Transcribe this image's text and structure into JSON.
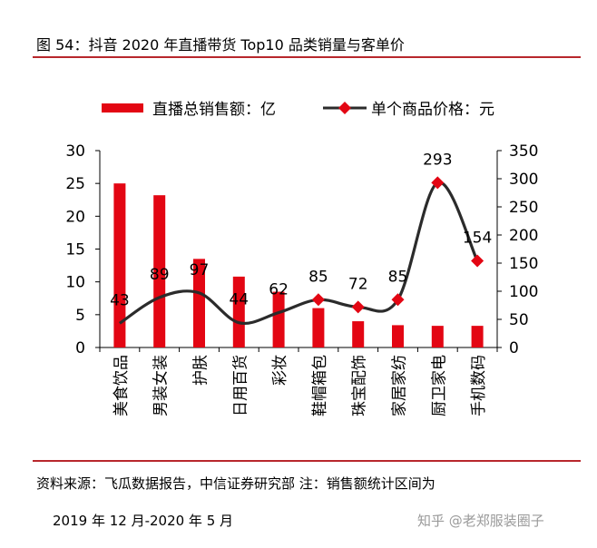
{
  "header": {
    "title": "图 54：抖音 2020 年直播带货 Top10 品类销量与客单价"
  },
  "footer": {
    "source_line1": "资料来源：飞瓜数据报告，中信证券研究部  注：销售额统计区间为",
    "source_line2": "2019 年 12 月-2020 年 5 月",
    "watermark": "知乎 @老郑服装圈子"
  },
  "colors": {
    "bar": "#e30613",
    "line": "#2b2b2b",
    "marker": "#e30613",
    "rule": "#b8272c"
  },
  "chart_data": {
    "type": "bar",
    "categories": [
      "美食饮品",
      "男装女装",
      "护肤",
      "日用百货",
      "彩妆",
      "鞋帽箱包",
      "珠宝配饰",
      "家居家纺",
      "厨卫家电",
      "手机数码"
    ],
    "series": [
      {
        "name": "直播总销售额：亿",
        "type": "bar",
        "axis": "left",
        "values": [
          25,
          23.2,
          13.5,
          10.8,
          8.5,
          6,
          4,
          3.4,
          3.3,
          3.3
        ]
      },
      {
        "name": "单个商品价格：元",
        "type": "line",
        "axis": "right",
        "values": [
          43,
          89,
          97,
          44,
          62,
          85,
          72,
          85,
          293,
          154
        ],
        "labels": [
          "43",
          "89",
          "97",
          "44",
          "62",
          "85",
          "72",
          "85",
          "293",
          "154"
        ]
      }
    ],
    "y_left": {
      "min": 0,
      "max": 30,
      "ticks": [
        "0",
        "5",
        "10",
        "15",
        "20",
        "25",
        "30"
      ]
    },
    "y_right": {
      "min": 0,
      "max": 350,
      "ticks": [
        "0",
        "50",
        "100",
        "150",
        "200",
        "250",
        "300",
        "350"
      ]
    },
    "legend_position": "top",
    "grid": false
  }
}
